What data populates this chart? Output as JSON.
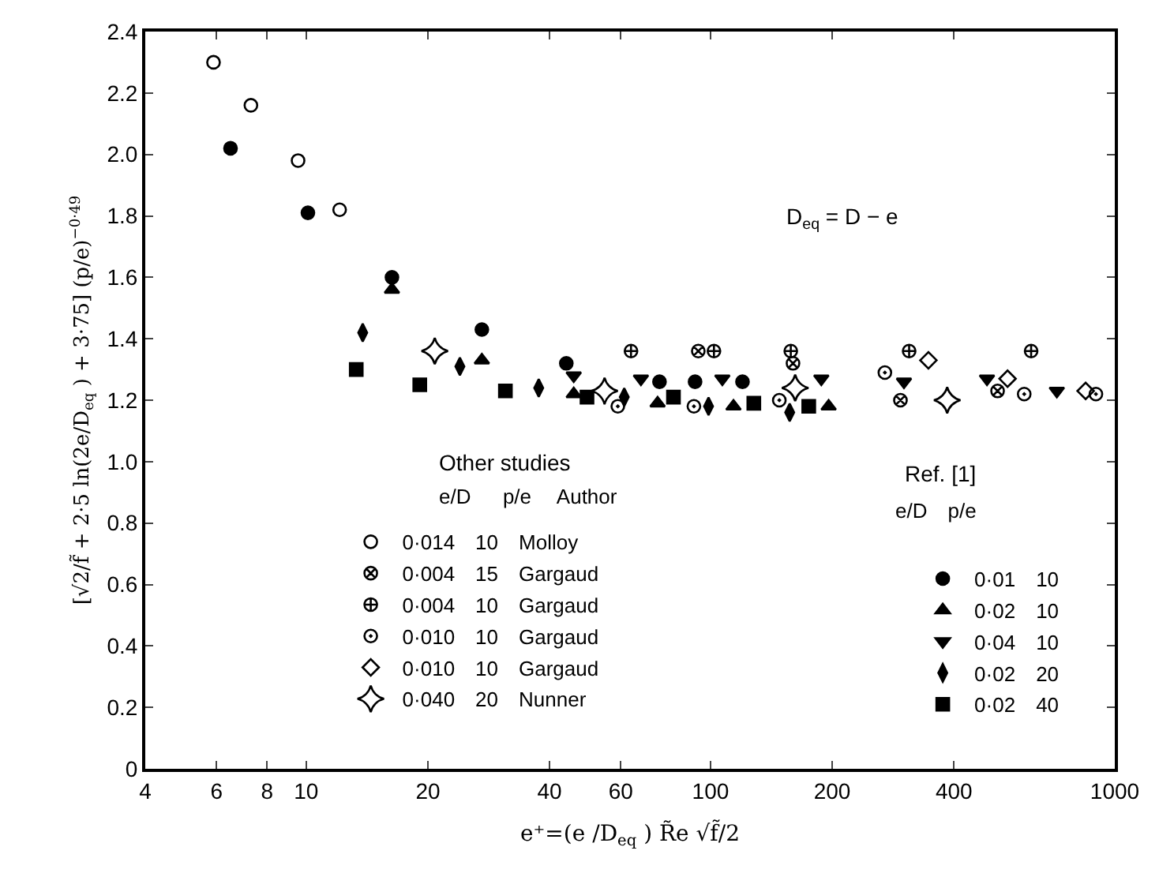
{
  "chart_data": {
    "type": "scatter",
    "xlabel": "e⁺=(e /D$_{eq}$ ) R̃e √f̃/2",
    "ylabel": "[√2/f̃ + 2·5 ln(2e/D$_{eq}$ ) + 3·75] (p/e)$^{−0·49}$",
    "annotations": [
      "D$_{eq}$ = D − e",
      "Other studies",
      "e/D     p/e    Author",
      "Ref. [1]",
      "e/D   p/e"
    ],
    "log": "x",
    "legend": "bottom",
    "xlim": [
      4,
      1000
    ],
    "xticks": [
      4,
      6,
      8,
      10,
      20,
      40,
      60,
      100,
      200,
      400,
      1000
    ],
    "ylim": [
      0,
      2.4
    ],
    "yticks": [
      0,
      0.2,
      0.4,
      0.6,
      0.8,
      {
        "value": 1.0,
        "label": "1.0"
      },
      1.2,
      1.4,
      1.6,
      1.8,
      {
        "value": 2.0,
        "label": "2.0"
      },
      2.2,
      2.4
    ],
    "series": [
      {
        "name": "0·014   10   Molloy",
        "color": "#000000",
        "marker": "circle",
        "x": [
          5.9,
          7.3,
          9.55,
          12.1
        ],
        "values": [
          2.3,
          2.16,
          1.98,
          1.82
        ]
      },
      {
        "name": "0·004   15   Gargaud",
        "color": "#000000",
        "marker": "cross",
        "x": [
          93.3,
          160,
          295,
          513
        ],
        "values": [
          1.36,
          1.32,
          1.2,
          1.23
        ]
      },
      {
        "name": "0·004   10   Gargaud",
        "color": "#000000",
        "marker": "cross",
        "x": [
          63.6,
          102,
          158,
          310,
          621
        ],
        "values": [
          1.36,
          1.36,
          1.36,
          1.36,
          1.36
        ]
      },
      {
        "name": "0·010   10   Gargaud",
        "color": "#000000",
        "marker": "circle",
        "x": [
          59,
          91,
          148,
          270,
          597,
          898
        ],
        "values": [
          1.18,
          1.18,
          1.2,
          1.29,
          1.22,
          1.22
        ]
      },
      {
        "name": "0·010   10   Gargaud",
        "color": "#000000",
        "marker": "diamond",
        "x": [
          346,
          543,
          847
        ],
        "values": [
          1.33,
          1.27,
          1.23
        ]
      },
      {
        "name": "0·040   20   Nunner",
        "color": "#000000",
        "marker": "star",
        "x": [
          20.8,
          54.7,
          162,
          385
        ],
        "values": [
          1.36,
          1.23,
          1.24,
          1.2
        ]
      },
      {
        "name": "0·01   10",
        "color": "#000000",
        "marker": "circle",
        "x": [
          6.5,
          10.1,
          16.3,
          27.2,
          44,
          74.8,
          91.6,
          120
        ],
        "values": [
          2.02,
          1.81,
          1.6,
          1.43,
          1.32,
          1.26,
          1.26,
          1.26
        ]
      },
      {
        "name": "0·02   10",
        "color": "#000000",
        "marker": "triangle",
        "x": [
          16.3,
          27.2,
          45.9,
          74,
          114,
          196
        ],
        "values": [
          1.56,
          1.33,
          1.22,
          1.19,
          1.18,
          1.18
        ]
      },
      {
        "name": "0·04   10",
        "color": "#000000",
        "marker": "triangle",
        "x": [
          45.9,
          67.3,
          107,
          188,
          301,
          483,
          719
        ],
        "values": [
          1.28,
          1.27,
          1.27,
          1.27,
          1.26,
          1.27,
          1.23
        ]
      },
      {
        "name": "0·02   20",
        "color": "#000000",
        "marker": "diamond",
        "x": [
          13.8,
          24,
          37.6,
          61.2,
          98.9,
          157
        ],
        "values": [
          1.42,
          1.31,
          1.24,
          1.21,
          1.18,
          1.16
        ]
      },
      {
        "name": "0·02   40",
        "color": "#000000",
        "marker": "square",
        "x": [
          13.3,
          19.1,
          31.1,
          49.5,
          81,
          128,
          175
        ],
        "values": [
          1.3,
          1.25,
          1.23,
          1.21,
          1.21,
          1.19,
          1.18
        ]
      }
    ]
  }
}
